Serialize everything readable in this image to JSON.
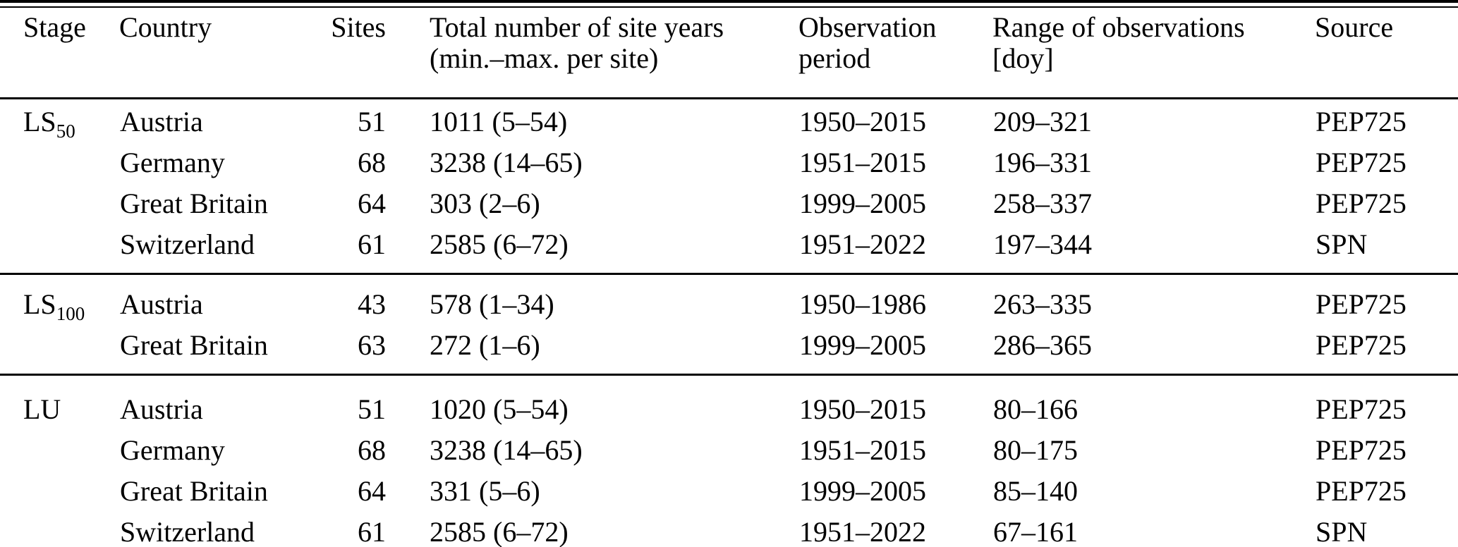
{
  "table": {
    "header": {
      "stage": "Stage",
      "country": "Country",
      "sites": "Sites",
      "site_years_line1": "Total number of site years",
      "site_years_line2": "(min.–max. per site)",
      "obs_line1": "Observation",
      "obs_line2": "period",
      "range_line1": "Range of observations",
      "range_line2": "[doy]",
      "source": "Source"
    },
    "groups": [
      {
        "stage_base": "LS",
        "stage_sub": "50",
        "rows": [
          {
            "country": "Austria",
            "sites": "51",
            "site_years": "1011 (5–54)",
            "obs_period": "1950–2015",
            "range": "209–321",
            "source": "PEP725"
          },
          {
            "country": "Germany",
            "sites": "68",
            "site_years": "3238 (14–65)",
            "obs_period": "1951–2015",
            "range": "196–331",
            "source": "PEP725"
          },
          {
            "country": "Great Britain",
            "sites": "64",
            "site_years": "303 (2–6)",
            "obs_period": "1999–2005",
            "range": "258–337",
            "source": "PEP725"
          },
          {
            "country": "Switzerland",
            "sites": "61",
            "site_years": "2585 (6–72)",
            "obs_period": "1951–2022",
            "range": "197–344",
            "source": "SPN"
          }
        ]
      },
      {
        "stage_base": "LS",
        "stage_sub": "100",
        "rows": [
          {
            "country": "Austria",
            "sites": "43",
            "site_years": "578 (1–34)",
            "obs_period": "1950–1986",
            "range": "263–335",
            "source": "PEP725"
          },
          {
            "country": "Great Britain",
            "sites": "63",
            "site_years": "272 (1–6)",
            "obs_period": "1999–2005",
            "range": "286–365",
            "source": "PEP725"
          }
        ]
      },
      {
        "stage_base": "LU",
        "stage_sub": "",
        "rows": [
          {
            "country": "Austria",
            "sites": "51",
            "site_years": "1020 (5–54)",
            "obs_period": "1950–2015",
            "range": "80–166",
            "source": "PEP725"
          },
          {
            "country": "Germany",
            "sites": "68",
            "site_years": "3238 (14–65)",
            "obs_period": "1951–2015",
            "range": "80–175",
            "source": "PEP725"
          },
          {
            "country": "Great Britain",
            "sites": "64",
            "site_years": "331 (5–6)",
            "obs_period": "1999–2005",
            "range": "85–140",
            "source": "PEP725"
          },
          {
            "country": "Switzerland",
            "sites": "61",
            "site_years": "2585 (6–72)",
            "obs_period": "1951–2022",
            "range": "67–161",
            "source": "SPN"
          }
        ]
      }
    ]
  }
}
